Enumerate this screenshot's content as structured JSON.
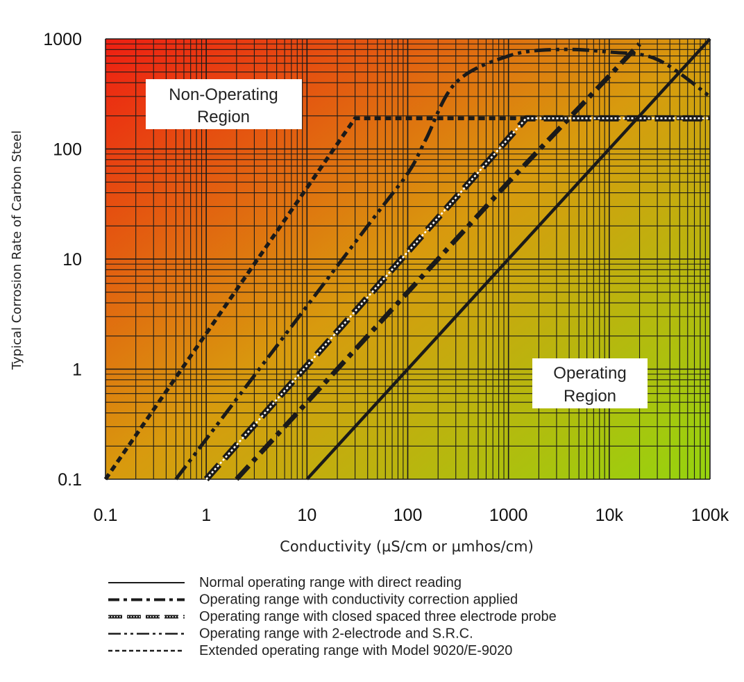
{
  "chart_data": {
    "type": "line",
    "title": "",
    "xlabel": "Conductivity (µS/cm or µmhos/cm)",
    "ylabel": "Typical Corrosion Rate of Carbon Steel",
    "x_scale": "log",
    "y_scale": "log",
    "xlim": [
      0.1,
      100000
    ],
    "ylim": [
      0.1,
      1000
    ],
    "x_tick_labels": [
      "0.1",
      "1",
      "10",
      "100",
      "1000",
      "10k",
      "100k"
    ],
    "x_tick_values": [
      0.1,
      1,
      10,
      100,
      1000,
      10000,
      100000
    ],
    "y_tick_labels": [
      "0.1",
      "1",
      "10",
      "100",
      "1000"
    ],
    "y_tick_values": [
      0.1,
      1,
      10,
      100,
      1000
    ],
    "grid": true,
    "background": "gradient red (top-left) to yellow-green (bottom-right)",
    "colors": {
      "bg_top_left": "#ee1f12",
      "bg_mid": "#d89a0e",
      "bg_bottom_right": "#96d40e",
      "grid": "#1a1a1a",
      "lines": "#1a1a1a"
    },
    "regions": [
      {
        "label_lines": [
          "Non-Operating",
          "Region"
        ],
        "placement": "upper-left"
      },
      {
        "label_lines": [
          "Operating",
          "Region"
        ],
        "placement": "lower-right"
      }
    ],
    "series": [
      {
        "name": "Normal operating range with direct reading",
        "style": "solid",
        "x": [
          10,
          100000
        ],
        "y": [
          0.1,
          1000
        ]
      },
      {
        "name": "Operating range with conductivity correction applied",
        "style": "dash-dot",
        "x": [
          2,
          1000,
          20000
        ],
        "y": [
          0.1,
          50,
          900
        ]
      },
      {
        "name": "Operating range with closed spaced three electrode probe",
        "style": "dotted-band",
        "x": [
          1,
          1500,
          100000
        ],
        "y": [
          0.1,
          190,
          190
        ]
      },
      {
        "name": "Operating range with 2-electrode and S.R.C.",
        "style": "dash-dot-dot",
        "x": [
          0.5,
          40,
          100,
          150,
          300,
          1000,
          3000,
          10000,
          30000,
          100000
        ],
        "y": [
          0.1,
          20,
          60,
          120,
          400,
          700,
          800,
          760,
          650,
          300
        ]
      },
      {
        "name": "Extended operating range with Model 9020/E-9020",
        "style": "dotted",
        "x": [
          0.1,
          30,
          100000
        ],
        "y": [
          0.1,
          190,
          190
        ]
      }
    ]
  }
}
